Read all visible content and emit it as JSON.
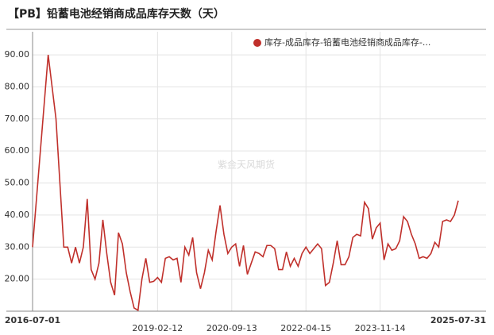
{
  "chart_data": {
    "type": "line",
    "title": "【PB】铅蓄电池经销商成品库存天数（天）",
    "watermark": "紫金天风期货",
    "categories": [
      "2016-07-01",
      null,
      null,
      null,
      null,
      null,
      null,
      null,
      null,
      null,
      null,
      null,
      null,
      null,
      null,
      null,
      null,
      null,
      null,
      null,
      null,
      null,
      null,
      null,
      null,
      null,
      null,
      null,
      null,
      null,
      null,
      null,
      "2019-02-12",
      null,
      null,
      null,
      null,
      null,
      null,
      null,
      null,
      null,
      null,
      null,
      null,
      null,
      null,
      null,
      null,
      null,
      null,
      "2020-09-13",
      null,
      null,
      null,
      null,
      null,
      null,
      null,
      null,
      null,
      null,
      null,
      null,
      null,
      null,
      null,
      null,
      null,
      null,
      "2022-04-15",
      null,
      null,
      null,
      null,
      null,
      null,
      null,
      null,
      null,
      null,
      null,
      null,
      null,
      null,
      null,
      null,
      null,
      null,
      "2023-11-14",
      null,
      null,
      null,
      null,
      null,
      null,
      null,
      null,
      null,
      null,
      null,
      null,
      null,
      null,
      null,
      null,
      null,
      null,
      null,
      "2025-07-31"
    ],
    "series": [
      {
        "name": "库存-成品库存-铅蓄电池经销商成品库存-...",
        "color": "#c0302b",
        "values": [
          30,
          45,
          60,
          75,
          90,
          80,
          70,
          50,
          30,
          30,
          25,
          30,
          25,
          30,
          45,
          23,
          20,
          25,
          38.5,
          28,
          19,
          15,
          34.5,
          31,
          22,
          16,
          11,
          10.3,
          20,
          26.5,
          19,
          19.3,
          20.5,
          19,
          26.5,
          27,
          26,
          26.5,
          19,
          30,
          27.5,
          33,
          22,
          17,
          22,
          29,
          26,
          35,
          43,
          34,
          28,
          30,
          31,
          24,
          30.5,
          21.5,
          25,
          28.5,
          28,
          27,
          30.5,
          30.5,
          29.5,
          23,
          23,
          28.5,
          24,
          26.5,
          24,
          28,
          30,
          28,
          29.5,
          31,
          29.5,
          18,
          19,
          25,
          32,
          24.5,
          24.5,
          27,
          33,
          34,
          33.5,
          44,
          42,
          32.5,
          36,
          37.5,
          26,
          31,
          29,
          29.5,
          32,
          39.5,
          38,
          34,
          31,
          26.5,
          27,
          26.5,
          28,
          31.5,
          30,
          38,
          38.5,
          38,
          40,
          44.5
        ]
      }
    ],
    "ylim": [
      10,
      92
    ],
    "yticks": [
      {
        "value": 20,
        "label": "20.00"
      },
      {
        "value": 30,
        "label": "30.00"
      },
      {
        "value": 40,
        "label": "40.00"
      },
      {
        "value": 50,
        "label": "50.00"
      },
      {
        "value": 60,
        "label": "60.00"
      },
      {
        "value": 70,
        "label": "70.00"
      },
      {
        "value": 80,
        "label": "80.00"
      },
      {
        "value": 90,
        "label": "90.00"
      }
    ],
    "grid": true
  }
}
